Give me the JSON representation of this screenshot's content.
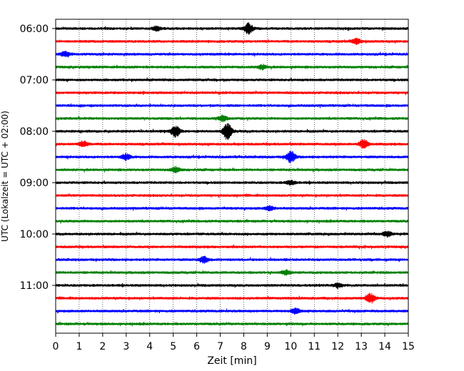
{
  "chart_data": {
    "type": "line",
    "title": "",
    "xlabel": "Zeit  [min]",
    "ylabel": "UTC (Lokalzeit = UTC + 02:00)",
    "xlim": [
      0,
      15
    ],
    "x_ticks": [
      0,
      1,
      2,
      3,
      4,
      5,
      6,
      7,
      8,
      9,
      10,
      11,
      12,
      13,
      14,
      15
    ],
    "x_tick_labels": [
      "0",
      "1",
      "2",
      "3",
      "4",
      "5",
      "6",
      "7",
      "8",
      "9",
      "10",
      "11",
      "12",
      "13",
      "14",
      "15"
    ],
    "y_tick_labels": [
      "06:00",
      "07:00",
      "08:00",
      "09:00",
      "10:00",
      "11:00"
    ],
    "grid": "vertical dotted",
    "color_cycle": [
      "#000000",
      "#ff0000",
      "#0000ff",
      "#008000"
    ],
    "trace_start_times": [
      "06:00",
      "06:15",
      "06:30",
      "06:45",
      "07:00",
      "07:15",
      "07:30",
      "07:45",
      "08:00",
      "08:15",
      "08:30",
      "08:45",
      "09:00",
      "09:15",
      "09:30",
      "09:45",
      "10:00",
      "10:15",
      "10:30",
      "10:45",
      "11:00",
      "11:15",
      "11:30",
      "11:45"
    ],
    "events": [
      {
        "trace": 0,
        "minute": 8.2,
        "amplitude": 1.0
      },
      {
        "trace": 0,
        "minute": 4.3,
        "amplitude": 0.4
      },
      {
        "trace": 1,
        "minute": 12.8,
        "amplitude": 0.5
      },
      {
        "trace": 2,
        "minute": 0.4,
        "amplitude": 0.5
      },
      {
        "trace": 3,
        "minute": 8.8,
        "amplitude": 0.4
      },
      {
        "trace": 7,
        "minute": 7.1,
        "amplitude": 0.5
      },
      {
        "trace": 8,
        "minute": 5.1,
        "amplitude": 1.1
      },
      {
        "trace": 8,
        "minute": 7.3,
        "amplitude": 1.6
      },
      {
        "trace": 9,
        "minute": 13.1,
        "amplitude": 0.8
      },
      {
        "trace": 9,
        "minute": 1.2,
        "amplitude": 0.5
      },
      {
        "trace": 10,
        "minute": 10.0,
        "amplitude": 1.1
      },
      {
        "trace": 10,
        "minute": 3.0,
        "amplitude": 0.6
      },
      {
        "trace": 11,
        "minute": 5.1,
        "amplitude": 0.5
      },
      {
        "trace": 12,
        "minute": 10.0,
        "amplitude": 0.4
      },
      {
        "trace": 14,
        "minute": 9.1,
        "amplitude": 0.4
      },
      {
        "trace": 16,
        "minute": 14.1,
        "amplitude": 0.5
      },
      {
        "trace": 18,
        "minute": 6.3,
        "amplitude": 0.6
      },
      {
        "trace": 19,
        "minute": 9.8,
        "amplitude": 0.4
      },
      {
        "trace": 20,
        "minute": 12.0,
        "amplitude": 0.4
      },
      {
        "trace": 21,
        "minute": 13.4,
        "amplitude": 0.9
      },
      {
        "trace": 22,
        "minute": 10.2,
        "amplitude": 0.5
      }
    ]
  }
}
